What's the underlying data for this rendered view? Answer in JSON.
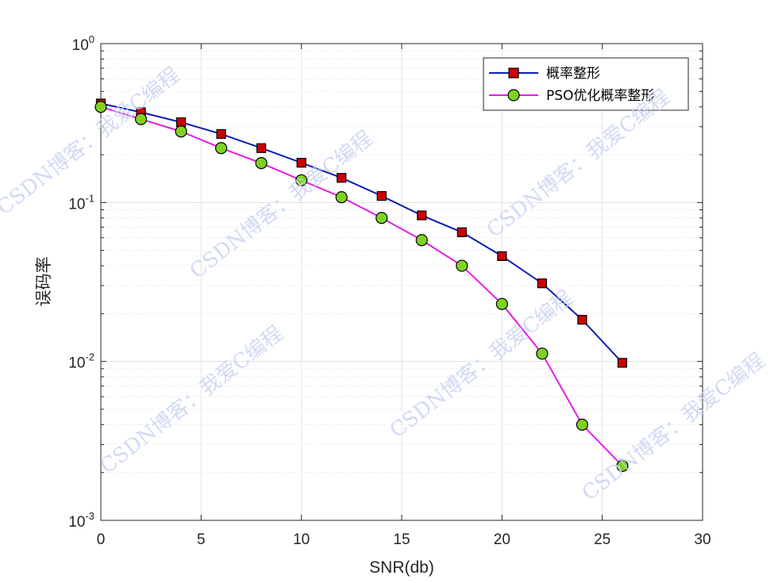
{
  "chart_data": {
    "type": "line",
    "xlabel": "SNR(db)",
    "ylabel": "误码率",
    "xlim": [
      0,
      30
    ],
    "ylim": [
      0.001,
      1
    ],
    "yscale": "log",
    "grid": true,
    "legend_position": "top-right",
    "x_ticks": [
      "0",
      "5",
      "10",
      "15",
      "20",
      "25",
      "30"
    ],
    "y_ticks": [
      {
        "base": "10",
        "exp": "0"
      },
      {
        "base": "10",
        "exp": "-1"
      },
      {
        "base": "10",
        "exp": "-2"
      },
      {
        "base": "10",
        "exp": "-3"
      }
    ],
    "x": [
      0,
      2,
      4,
      6,
      8,
      10,
      12,
      14,
      16,
      18,
      20,
      22,
      24,
      26
    ],
    "series": [
      {
        "name": "概率整形",
        "color": "#0a1eb4",
        "marker": "square",
        "marker_color": "#cc0000",
        "values": [
          0.42,
          0.37,
          0.32,
          0.27,
          0.22,
          0.178,
          0.143,
          0.11,
          0.083,
          0.065,
          0.046,
          0.031,
          0.0183,
          0.0098
        ]
      },
      {
        "name": "PSO优化概率整形",
        "color": "#e61ee6",
        "marker": "circle",
        "marker_color": "#7ed321",
        "values": [
          0.4,
          0.335,
          0.28,
          0.22,
          0.177,
          0.138,
          0.108,
          0.08,
          0.058,
          0.04,
          0.023,
          0.0112,
          0.004,
          0.0022
        ]
      }
    ]
  },
  "watermark_text": "CSDN博客：我爱C编程"
}
